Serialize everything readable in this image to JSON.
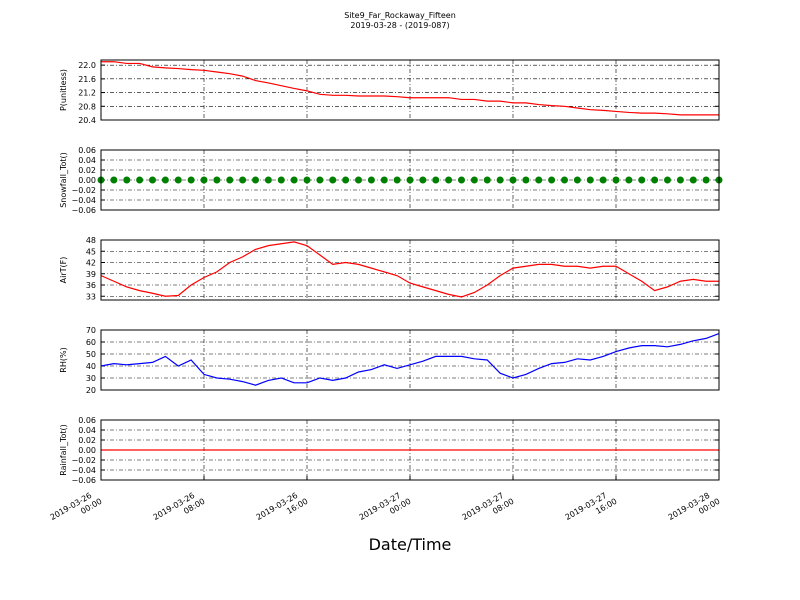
{
  "title": "Site9_Far_Rockaway_Fifteen",
  "subtitle": "2019-03-28 - (2019-087)",
  "xlabel": "Date/Time",
  "xlim": [
    "2019-03-26 00:00",
    "2019-03-28 00:00"
  ],
  "xticks": [
    "2019-03-26 00:00",
    "2019-03-26 08:00",
    "2019-03-26 16:00",
    "2019-03-27 00:00",
    "2019-03-27 08:00",
    "2019-03-27 16:00",
    "2019-03-28 00:00"
  ],
  "chart_data": [
    {
      "type": "line",
      "ylabel": "P(unitless)",
      "ylim": [
        20.4,
        22.15
      ],
      "yticks": [
        20.4,
        20.8,
        21.2,
        21.6,
        {
          "value": 22,
          "label": "22.0"
        }
      ],
      "grid": true,
      "series": [
        {
          "name": "P",
          "color": "#ff0000",
          "values": [
            22.1,
            22.1,
            22.05,
            22.05,
            21.95,
            21.92,
            21.9,
            21.87,
            21.85,
            21.8,
            21.75,
            21.68,
            21.55,
            21.48,
            21.4,
            21.32,
            21.25,
            21.15,
            21.12,
            21.12,
            21.1,
            21.1,
            21.1,
            21.08,
            21.05,
            21.05,
            21.05,
            21.05,
            21.0,
            21.0,
            20.95,
            20.95,
            20.9,
            20.9,
            20.85,
            20.82,
            20.8,
            20.75,
            20.7,
            20.68,
            20.65,
            20.62,
            20.6,
            20.6,
            20.58,
            20.55,
            20.55,
            20.55,
            20.55
          ]
        }
      ]
    },
    {
      "type": "scatter",
      "ylabel": "Snowfall_Tot()",
      "ylim": [
        -0.06,
        0.06
      ],
      "yticks": [
        {
          "value": -0.06,
          "label": "−0.06"
        },
        {
          "value": -0.04,
          "label": "−0.04"
        },
        {
          "value": -0.02,
          "label": "−0.02"
        },
        {
          "value": 0,
          "label": "0.00"
        },
        0.02,
        0.04,
        0.06
      ],
      "grid": true,
      "series": [
        {
          "name": "Snowfall_Tot",
          "color": "#008000",
          "values": [
            0,
            0,
            0,
            0,
            0,
            0,
            0,
            0,
            0,
            0,
            0,
            0,
            0,
            0,
            0,
            0,
            0,
            0,
            0,
            0,
            0,
            0,
            0,
            0,
            0,
            0,
            0,
            0,
            0,
            0,
            0,
            0,
            0,
            0,
            0,
            0,
            0,
            0,
            0,
            0,
            0,
            0,
            0,
            0,
            0,
            0,
            0,
            0,
            0
          ]
        }
      ]
    },
    {
      "type": "line",
      "ylabel": "AirT(F)",
      "ylim": [
        32,
        48
      ],
      "yticks": [
        33,
        36,
        39,
        42,
        45,
        48
      ],
      "grid": true,
      "series": [
        {
          "name": "AirT",
          "color": "#ff0000",
          "values": [
            38.5,
            37,
            35.5,
            34.5,
            33.8,
            33,
            33.2,
            36,
            38,
            39.5,
            42,
            43.5,
            45.5,
            46.5,
            47,
            47.5,
            46.5,
            44,
            41.5,
            42,
            41.5,
            40.5,
            39.5,
            38.5,
            36.5,
            35.5,
            34.5,
            33.5,
            32.8,
            34,
            36,
            38.5,
            40.5,
            41,
            41.5,
            41.5,
            41,
            41,
            40.5,
            41,
            41,
            39,
            37,
            34.5,
            35.5,
            37,
            37.5,
            37,
            37
          ]
        }
      ]
    },
    {
      "type": "line",
      "ylabel": "RH(%)",
      "ylim": [
        20,
        70
      ],
      "yticks": [
        20,
        30,
        40,
        50,
        60,
        70
      ],
      "grid": true,
      "series": [
        {
          "name": "RH",
          "color": "#0000ff",
          "values": [
            40,
            42,
            41,
            42,
            43,
            48,
            40,
            45,
            33,
            30,
            29,
            27,
            24,
            28,
            30,
            26,
            26,
            30,
            28,
            30,
            35,
            37,
            41,
            38,
            41,
            44,
            48,
            48,
            48,
            46,
            45,
            34,
            30,
            33,
            38,
            42,
            43,
            46,
            45,
            48,
            52,
            55,
            57,
            57,
            56,
            58,
            61,
            63,
            67
          ]
        }
      ]
    },
    {
      "type": "line",
      "ylabel": "Rainfall_Tot()",
      "ylim": [
        -0.06,
        0.06
      ],
      "yticks": [
        {
          "value": -0.06,
          "label": "−0.06"
        },
        {
          "value": -0.04,
          "label": "−0.04"
        },
        {
          "value": -0.02,
          "label": "−0.02"
        },
        {
          "value": 0,
          "label": "0.00"
        },
        0.02,
        0.04,
        0.06
      ],
      "grid": true,
      "series": [
        {
          "name": "Rainfall_Tot",
          "color": "#ff0000",
          "values": [
            0,
            0,
            0,
            0,
            0,
            0,
            0,
            0,
            0,
            0,
            0,
            0,
            0,
            0,
            0,
            0,
            0,
            0,
            0,
            0,
            0,
            0,
            0,
            0,
            0,
            0,
            0,
            0,
            0,
            0,
            0,
            0,
            0,
            0,
            0,
            0,
            0,
            0,
            0,
            0,
            0,
            0,
            0,
            0,
            0,
            0,
            0,
            0,
            0
          ]
        }
      ]
    }
  ],
  "x": [
    "2019-03-26 00:00",
    "2019-03-26 01:00",
    "2019-03-26 02:00",
    "2019-03-26 03:00",
    "2019-03-26 04:00",
    "2019-03-26 05:00",
    "2019-03-26 06:00",
    "2019-03-26 07:00",
    "2019-03-26 08:00",
    "2019-03-26 09:00",
    "2019-03-26 10:00",
    "2019-03-26 11:00",
    "2019-03-26 12:00",
    "2019-03-26 13:00",
    "2019-03-26 14:00",
    "2019-03-26 15:00",
    "2019-03-26 16:00",
    "2019-03-26 17:00",
    "2019-03-26 18:00",
    "2019-03-26 19:00",
    "2019-03-26 20:00",
    "2019-03-26 21:00",
    "2019-03-26 22:00",
    "2019-03-26 23:00",
    "2019-03-27 00:00",
    "2019-03-27 01:00",
    "2019-03-27 02:00",
    "2019-03-27 03:00",
    "2019-03-27 04:00",
    "2019-03-27 05:00",
    "2019-03-27 06:00",
    "2019-03-27 07:00",
    "2019-03-27 08:00",
    "2019-03-27 09:00",
    "2019-03-27 10:00",
    "2019-03-27 11:00",
    "2019-03-27 12:00",
    "2019-03-27 13:00",
    "2019-03-27 14:00",
    "2019-03-27 15:00",
    "2019-03-27 16:00",
    "2019-03-27 17:00",
    "2019-03-27 18:00",
    "2019-03-27 19:00",
    "2019-03-27 20:00",
    "2019-03-27 21:00",
    "2019-03-27 22:00",
    "2019-03-27 23:00",
    "2019-03-28 00:00"
  ]
}
